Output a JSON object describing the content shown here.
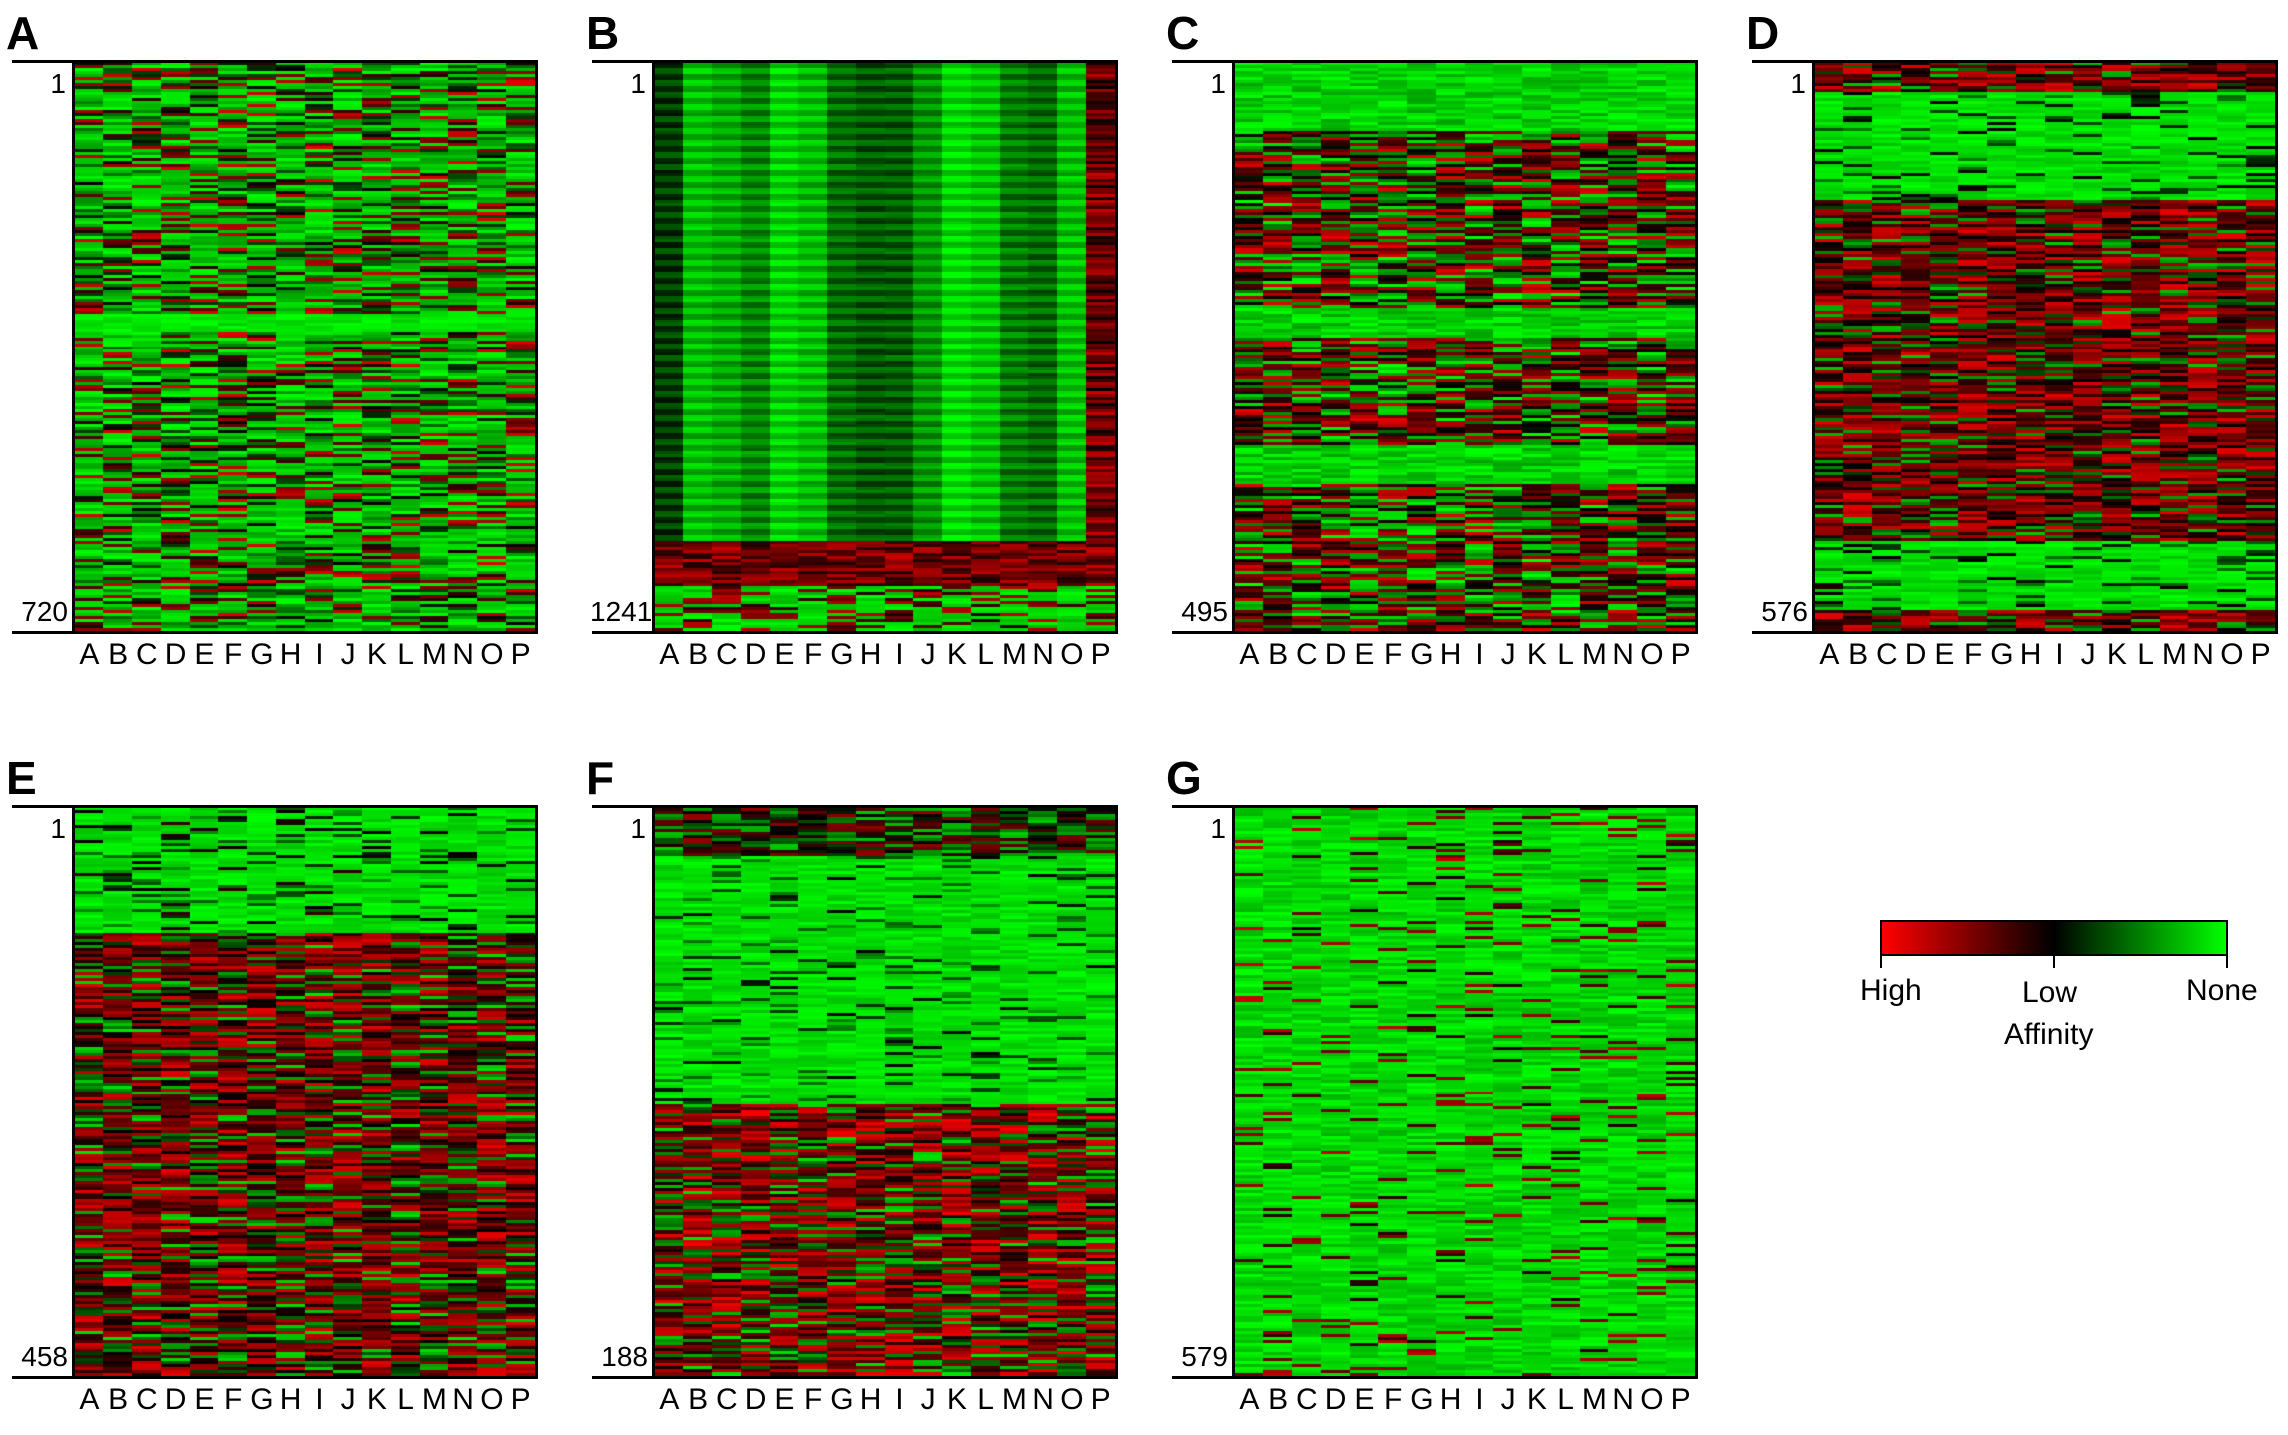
{
  "chart_data": {
    "type": "heatmap",
    "columns": [
      "A",
      "B",
      "C",
      "D",
      "E",
      "F",
      "G",
      "H",
      "I",
      "J",
      "K",
      "L",
      "M",
      "N",
      "O",
      "P"
    ],
    "colorscale": {
      "high": "#ff0000",
      "low": "#000000",
      "none": "#00ff00"
    },
    "panels": [
      {
        "letter": "A",
        "rows": 720,
        "row_start": "1",
        "row_end": "720",
        "pattern": "mixed-mostly-green",
        "green_bands": [
          0.44,
          0.47
        ]
      },
      {
        "letter": "B",
        "rows": 1241,
        "row_start": "1",
        "row_end": "1241",
        "pattern": "vertical-stripes-green-top-red-bottom-block",
        "red_block_from": 0.84
      },
      {
        "letter": "C",
        "rows": 495,
        "row_start": "1",
        "row_end": "495",
        "pattern": "mixed-with-green-bands",
        "green_bands": [
          0.0,
          0.12,
          0.43,
          0.48,
          0.67,
          0.74
        ]
      },
      {
        "letter": "D",
        "rows": 576,
        "row_start": "1",
        "row_end": "576",
        "pattern": "green-top-red-middle-green-bottom",
        "green_bands": [
          0.05,
          0.24,
          0.84,
          0.96
        ]
      },
      {
        "letter": "E",
        "rows": 458,
        "row_start": "1",
        "row_end": "458",
        "pattern": "green-top-red-rest",
        "green_bands": [
          0.0,
          0.22
        ]
      },
      {
        "letter": "F",
        "rows": 188,
        "row_start": "1",
        "row_end": "188",
        "pattern": "green-top-half-red-bottom",
        "green_bands": [
          0.08,
          0.52
        ]
      },
      {
        "letter": "G",
        "rows": 579,
        "row_start": "1",
        "row_end": "579",
        "pattern": "mostly-green-with-thin-red-lines",
        "green_bands": [
          0.0,
          1.0
        ]
      }
    ],
    "legend": {
      "high": "High",
      "low": "Low",
      "none": "None",
      "title": "Affinity"
    }
  }
}
